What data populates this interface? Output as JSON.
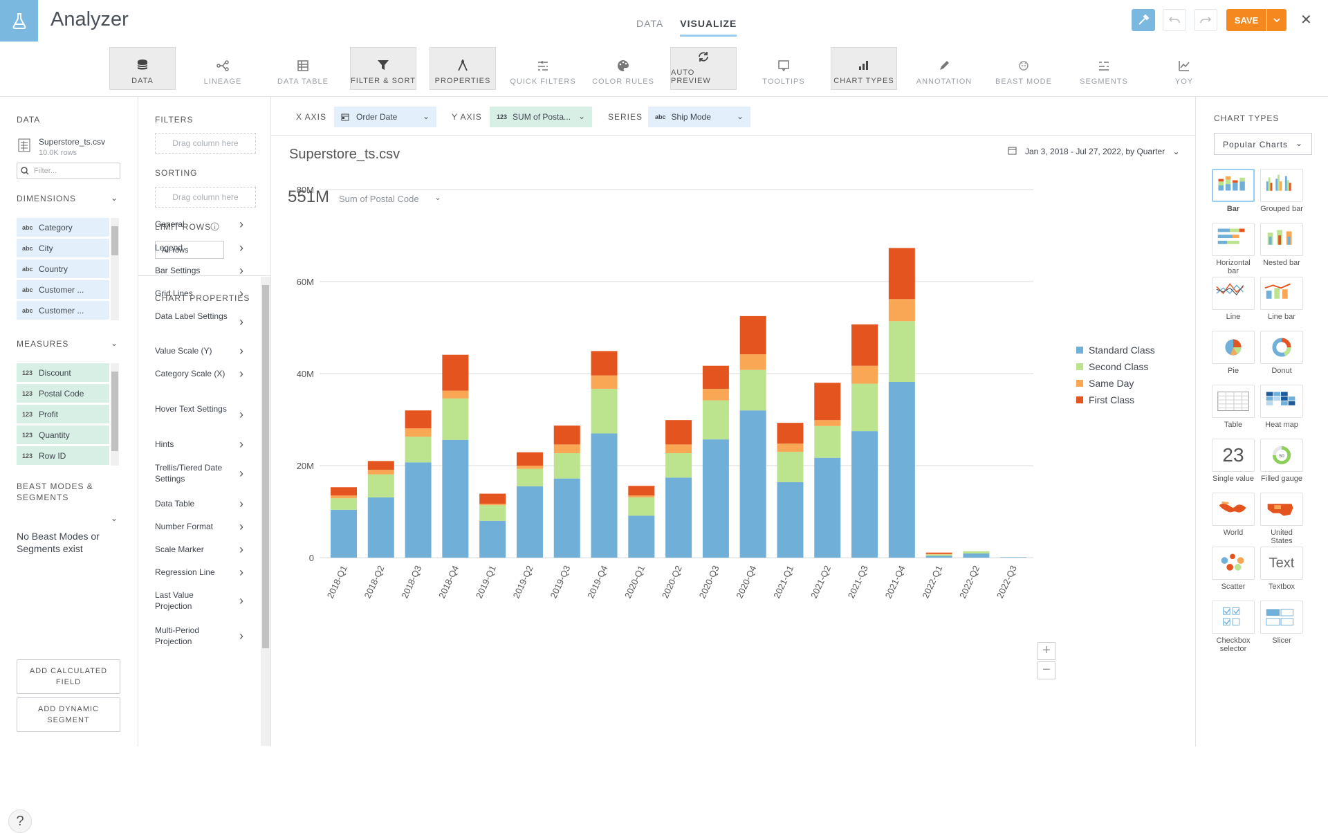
{
  "app": {
    "title": "Analyzer"
  },
  "tabs": [
    {
      "label": "DATA"
    },
    {
      "label": "VISUALIZE"
    }
  ],
  "save": {
    "label": "SAVE"
  },
  "toolbar": [
    {
      "label": "DATA",
      "icon": "database-icon",
      "on": true
    },
    {
      "label": "LINEAGE",
      "icon": "lineage-icon",
      "on": false
    },
    {
      "label": "DATA TABLE",
      "icon": "table-icon",
      "on": false
    },
    {
      "label": "FILTER & SORT",
      "icon": "filter-icon",
      "on": true
    },
    {
      "label": "PROPERTIES",
      "icon": "compass-icon",
      "on": true
    },
    {
      "label": "QUICK FILTERS",
      "icon": "quick-filter-icon",
      "on": false
    },
    {
      "label": "COLOR RULES",
      "icon": "palette-icon",
      "on": false
    },
    {
      "label": "AUTO PREVIEW",
      "icon": "refresh-icon",
      "on": true
    },
    {
      "label": "TOOLTIPS",
      "icon": "tooltip-icon",
      "on": false
    },
    {
      "label": "CHART TYPES",
      "icon": "bar-chart-icon",
      "on": true
    },
    {
      "label": "ANNOTATION",
      "icon": "pencil-icon",
      "on": false
    },
    {
      "label": "BEAST MODE",
      "icon": "beast-icon",
      "on": false
    },
    {
      "label": "SEGMENTS",
      "icon": "segments-icon",
      "on": false
    },
    {
      "label": "YOY",
      "icon": "yoy-icon",
      "on": false
    }
  ],
  "left": {
    "data_heading": "DATA",
    "dataset": "Superstore_ts.csv",
    "rows": "10.0K rows",
    "filter_placeholder": "Filter...",
    "dimensions_heading": "DIMENSIONS",
    "dimensions": [
      {
        "tag": "abc",
        "name": "Category"
      },
      {
        "tag": "abc",
        "name": "City"
      },
      {
        "tag": "abc",
        "name": "Country"
      },
      {
        "tag": "abc",
        "name": "Customer ..."
      },
      {
        "tag": "abc",
        "name": "Customer ..."
      }
    ],
    "measures_heading": "MEASURES",
    "measures": [
      {
        "tag": "123",
        "name": "Discount"
      },
      {
        "tag": "123",
        "name": "Postal Code"
      },
      {
        "tag": "123",
        "name": "Profit"
      },
      {
        "tag": "123",
        "name": "Quantity"
      },
      {
        "tag": "123",
        "name": "Row ID"
      }
    ],
    "beast_heading_1": "BEAST MODES &",
    "beast_heading_2": "SEGMENTS",
    "no_beast": "No Beast Modes or Segments exist",
    "add_calc": "ADD CALCULATED FIELD",
    "add_seg": "ADD DYNAMIC SEGMENT",
    "help": "?"
  },
  "props": {
    "filters_heading": "FILTERS",
    "drag1": "Drag column here",
    "sorting_heading": "SORTING",
    "drag2": "Drag column here",
    "limit_heading": "LIMIT ROWS",
    "limit_value": "All rows",
    "chart_props_heading": "CHART PROPERTIES",
    "items": [
      "General",
      "Legend",
      "Bar Settings",
      "Grid Lines",
      "Data Label Settings",
      "Value Scale (Y)",
      "Category Scale (X)",
      "Hover Text Settings",
      "Hints",
      "Trellis/Tiered Date Settings",
      "Data Table",
      "Number Format",
      "Scale Marker",
      "Regression Line",
      "Last Value Projection",
      "Multi-Period Projection"
    ]
  },
  "axes": {
    "x_label": "X AXIS",
    "x_tag": "",
    "x_value": "Order Date",
    "y_label": "Y AXIS",
    "y_tag": "123",
    "y_value": "SUM of Posta...",
    "series_label": "SERIES",
    "series_tag": "abc",
    "series_value": "Ship Mode"
  },
  "chart_header": {
    "title": "Superstore_ts.csv",
    "date_range": "Jan 3, 2018 - Jul 27, 2022, by Quarter",
    "summary_value": "551M",
    "summary_label": "Sum of Postal Code"
  },
  "chart_data": {
    "type": "bar",
    "stacked": true,
    "categories": [
      "2018-Q1",
      "2018-Q2",
      "2018-Q3",
      "2018-Q4",
      "2019-Q1",
      "2019-Q2",
      "2019-Q3",
      "2019-Q4",
      "2020-Q1",
      "2020-Q2",
      "2020-Q3",
      "2020-Q4",
      "2021-Q1",
      "2021-Q2",
      "2021-Q3",
      "2021-Q4",
      "2022-Q1",
      "2022-Q2",
      "2022-Q3"
    ],
    "series": [
      {
        "name": "Standard Class",
        "color": "#6fafd8",
        "values": [
          10.4,
          13.1,
          20.7,
          25.6,
          8.0,
          15.5,
          17.2,
          27.0,
          9.1,
          17.4,
          25.7,
          32.0,
          16.4,
          21.7,
          27.5,
          38.2,
          0.4,
          0.9,
          0.1
        ]
      },
      {
        "name": "Second Class",
        "color": "#bce38e",
        "values": [
          2.5,
          5.0,
          5.6,
          9.0,
          3.4,
          3.8,
          5.5,
          9.7,
          4.0,
          5.3,
          8.5,
          8.8,
          6.6,
          6.9,
          10.3,
          13.2,
          0.3,
          0.5,
          0
        ]
      },
      {
        "name": "Same Day",
        "color": "#faa755",
        "values": [
          0.6,
          1.0,
          1.8,
          1.7,
          0.3,
          0.7,
          1.9,
          2.9,
          0.4,
          1.9,
          2.5,
          3.4,
          1.8,
          1.3,
          3.9,
          4.8,
          0.1,
          0,
          0
        ]
      },
      {
        "name": "First Class",
        "color": "#e4541f",
        "values": [
          1.8,
          1.9,
          3.9,
          7.8,
          2.2,
          2.9,
          4.1,
          5.3,
          2.1,
          5.3,
          5.0,
          8.3,
          4.5,
          8.1,
          9.0,
          11.1,
          0.3,
          0,
          0
        ]
      }
    ],
    "yticks": [
      "0",
      "20M",
      "40M",
      "60M",
      "80M"
    ],
    "ylim": [
      0,
      80
    ],
    "legend": "right"
  },
  "right": {
    "heading": "CHART TYPES",
    "select": "Popular Charts",
    "types": [
      "Bar",
      "Grouped bar",
      "Horizontal bar",
      "Nested bar",
      "Line",
      "Line bar",
      "Pie",
      "Donut",
      "Table",
      "Heat map",
      "Single value",
      "Filled gauge",
      "World",
      "United States",
      "Scatter",
      "Textbox",
      "Checkbox selector",
      "Slicer"
    ],
    "single_value_icon": "23",
    "textbox_icon": "Text",
    "gauge_value": "50"
  }
}
